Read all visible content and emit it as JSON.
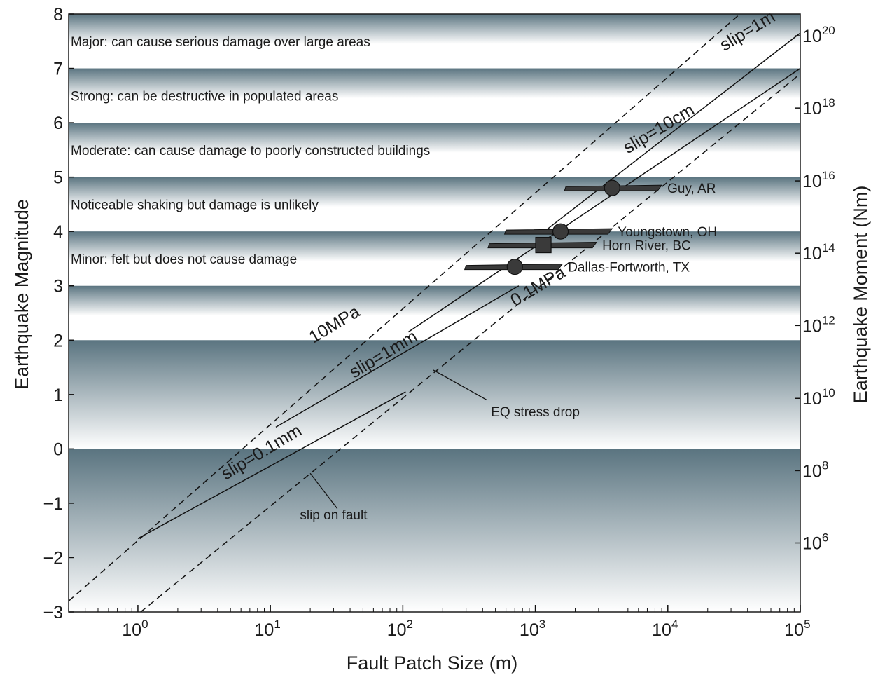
{
  "chart_data": {
    "type": "line",
    "xlabel": "Fault Patch Size (m)",
    "ylabel": "Earthquake Magnitude",
    "y2label": "Earthquake Moment (Nm)",
    "x_scale": "log",
    "xlim": [
      0.3,
      100000
    ],
    "ylim": [
      -3,
      8
    ],
    "x_ticks": [
      {
        "value": 1,
        "label": "10",
        "exp": "0"
      },
      {
        "value": 10,
        "label": "10",
        "exp": "1"
      },
      {
        "value": 100,
        "label": "10",
        "exp": "2"
      },
      {
        "value": 1000,
        "label": "10",
        "exp": "3"
      },
      {
        "value": 10000,
        "label": "10",
        "exp": "4"
      },
      {
        "value": 100000,
        "label": "10",
        "exp": "5"
      }
    ],
    "y_ticks": [
      {
        "value": 8,
        "label": "8"
      },
      {
        "value": 7,
        "label": "7"
      },
      {
        "value": 6,
        "label": "6"
      },
      {
        "value": 5,
        "label": "5"
      },
      {
        "value": 4,
        "label": "4"
      },
      {
        "value": 3,
        "label": "3"
      },
      {
        "value": 2,
        "label": "2"
      },
      {
        "value": 1,
        "label": "1"
      },
      {
        "value": 0,
        "label": "0"
      },
      {
        "value": -1,
        "label": "−1"
      },
      {
        "value": -2,
        "label": "−2"
      },
      {
        "value": -3,
        "label": "−3"
      }
    ],
    "y2_ticks": [
      {
        "magnitude": 7.6,
        "label": "10",
        "exp": "20"
      },
      {
        "magnitude": 6.27,
        "label": "10",
        "exp": "18"
      },
      {
        "magnitude": 4.93,
        "label": "10",
        "exp": "16"
      },
      {
        "magnitude": 3.6,
        "label": "10",
        "exp": "14"
      },
      {
        "magnitude": 2.27,
        "label": "10",
        "exp": "12"
      },
      {
        "magnitude": 0.93,
        "label": "10",
        "exp": "10"
      },
      {
        "magnitude": -0.4,
        "label": "10",
        "exp": "8"
      },
      {
        "magnitude": -1.73,
        "label": "10",
        "exp": "6"
      }
    ],
    "bands": [
      {
        "ymin": 7,
        "ymax": 8,
        "label": "Major: can cause serious damage over large areas"
      },
      {
        "ymin": 6,
        "ymax": 7,
        "label": "Strong: can be destructive in populated areas"
      },
      {
        "ymin": 5,
        "ymax": 6,
        "label": "Moderate: can cause damage to poorly constructed buildings"
      },
      {
        "ymin": 4,
        "ymax": 5,
        "label": "Noticeable shaking but damage is unlikely"
      },
      {
        "ymin": 3,
        "ymax": 4,
        "label": "Minor: felt but does not cause damage"
      },
      {
        "ymin": 2,
        "ymax": 3,
        "label": ""
      },
      {
        "ymin": 0,
        "ymax": 2,
        "label": ""
      },
      {
        "ymin": -3,
        "ymax": 0,
        "label": ""
      }
    ],
    "stress_drop_lines": [
      {
        "name": "10MPa",
        "points": [
          [
            0.3,
            -2.8
          ],
          [
            35000,
            8
          ]
        ]
      },
      {
        "name": "0.1MPa",
        "points": [
          [
            1.05,
            -3
          ],
          [
            100000,
            6.9
          ]
        ]
      }
    ],
    "slip_lines": [
      {
        "name": "slip=0.1mm",
        "points": [
          [
            1.0,
            -1.65
          ],
          [
            105,
            1.05
          ]
        ]
      },
      {
        "name": "slip=1mm",
        "points": [
          [
            11,
            0.4
          ],
          [
            750,
            3.0
          ]
        ]
      },
      {
        "name": "slip=10cm",
        "points": [
          [
            110,
            2.15
          ],
          [
            100000,
            7.0
          ]
        ]
      },
      {
        "name": "slip=1m",
        "points": [
          [
            1100,
            3.95
          ],
          [
            100000,
            7.65
          ]
        ]
      }
    ],
    "line_labels": [
      {
        "text": "slip=1m",
        "x": 42000,
        "y": 7.6
      },
      {
        "text": "slip=10cm",
        "x": 9000,
        "y": 5.8
      },
      {
        "text": "10MPa",
        "x": 32,
        "y": 2.2
      },
      {
        "text": "0.1MPa",
        "x": 1100,
        "y": 2.9
      },
      {
        "text": "slip=1mm",
        "x": 75,
        "y": 1.65
      },
      {
        "text": "slip=0.1mm",
        "x": 9,
        "y": -0.15
      }
    ],
    "earthquakes": [
      {
        "name": "Guy, AR",
        "size": 3800,
        "magnitude": 4.8,
        "range": [
          1700,
          9000
        ],
        "marker": "circle"
      },
      {
        "name": "Youngstown, OH",
        "size": 1550,
        "magnitude": 4.0,
        "range": [
          600,
          3800
        ],
        "marker": "circle"
      },
      {
        "name": "Horn River, BC",
        "size": 1150,
        "magnitude": 3.75,
        "range": [
          450,
          2900
        ],
        "marker": "square"
      },
      {
        "name": "Dallas-Fortworth, TX",
        "size": 700,
        "magnitude": 3.35,
        "range": [
          300,
          1600
        ],
        "marker": "circle"
      }
    ],
    "annotations": [
      {
        "text": "EQ stress drop",
        "text_x": 1000,
        "text_y": 0.6,
        "pointer_from": [
          430,
          0.9
        ],
        "pointer_to": [
          170,
          1.45
        ]
      },
      {
        "text": "slip on fault",
        "text_x": 30,
        "text_y": -1.3,
        "pointer_from": [
          32,
          -1.1
        ],
        "pointer_to": [
          20,
          -0.45
        ]
      }
    ]
  }
}
